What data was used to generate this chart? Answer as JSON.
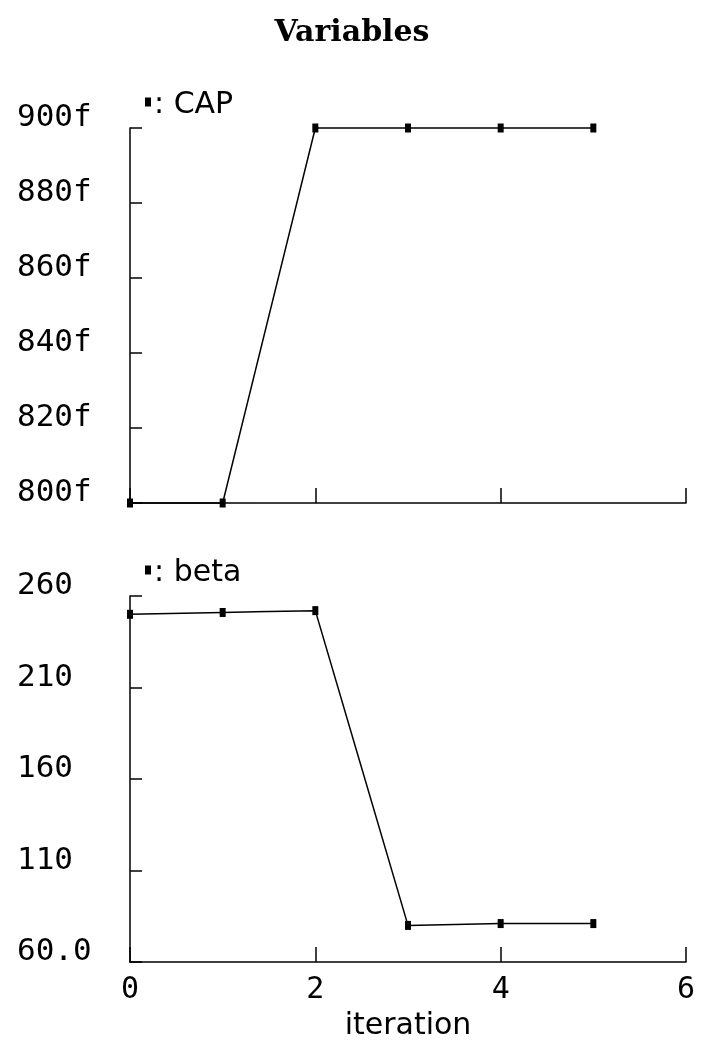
{
  "chart_data": [
    {
      "type": "line",
      "title": "Variables",
      "x": [
        0,
        1,
        2,
        3,
        4,
        5
      ],
      "series": [
        {
          "name": ": CAP",
          "color": "#000000",
          "values": [
            800,
            800,
            900,
            900,
            900,
            900
          ]
        }
      ],
      "xlim": [
        0,
        6
      ],
      "xticks": [
        0,
        2,
        4,
        6
      ],
      "ylim": [
        800,
        900
      ],
      "yticks": [
        {
          "value": 800,
          "label": "800f"
        },
        {
          "value": 820,
          "label": "820f"
        },
        {
          "value": 840,
          "label": "840f"
        },
        {
          "value": 860,
          "label": "860f"
        },
        {
          "value": 880,
          "label": "880f"
        },
        {
          "value": 900,
          "label": "900f"
        }
      ],
      "tick_labels": "y",
      "legend": "top left",
      "marker": "square"
    },
    {
      "type": "line",
      "xlabel": "iteration",
      "x": [
        0,
        1,
        2,
        3,
        4,
        5
      ],
      "series": [
        {
          "name": ": beta",
          "color": "#000000",
          "values": [
            250,
            251,
            252,
            80,
            81,
            81
          ]
        }
      ],
      "xlim": [
        0,
        6
      ],
      "xticks": [
        0,
        2,
        4,
        6
      ],
      "ylim": [
        60,
        260
      ],
      "yticks": [
        {
          "value": 60,
          "label": "60.0"
        },
        110,
        160,
        210,
        260
      ],
      "legend": "top left",
      "marker": "square"
    }
  ]
}
